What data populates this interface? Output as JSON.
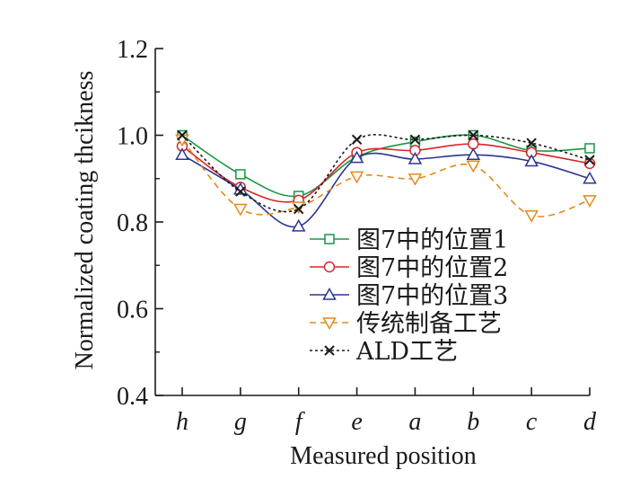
{
  "chart_data": {
    "type": "line",
    "title": "",
    "xlabel": "Measured position",
    "ylabel": "Normalized coating thcikness",
    "categories": [
      "h",
      "g",
      "f",
      "e",
      "a",
      "b",
      "c",
      "d"
    ],
    "ylim": [
      0.4,
      1.2
    ],
    "yticks": [
      "0.4",
      "0.6",
      "0.8",
      "1.0",
      "1.2"
    ],
    "grid": false,
    "legend_position": "center-right",
    "series": [
      {
        "name": "图7中的位置1",
        "color": "#1a9641",
        "marker": "square",
        "dash": "solid",
        "values": [
          1.0,
          0.91,
          0.86,
          0.95,
          0.985,
          1.0,
          0.965,
          0.97
        ]
      },
      {
        "name": "图7中的位置2",
        "color": "#d7262b",
        "marker": "circle",
        "dash": "solid",
        "values": [
          0.975,
          0.88,
          0.85,
          0.96,
          0.965,
          0.98,
          0.96,
          0.935
        ]
      },
      {
        "name": "图7中的位置3",
        "color": "#2b3590",
        "marker": "triangle-up",
        "dash": "solid",
        "values": [
          0.955,
          0.875,
          0.79,
          0.948,
          0.945,
          0.955,
          0.94,
          0.9
        ]
      },
      {
        "name": "传统制备工艺",
        "color": "#e08a1e",
        "marker": "triangle-down",
        "dash": "dashed",
        "values": [
          0.99,
          0.83,
          0.835,
          0.905,
          0.9,
          0.93,
          0.815,
          0.85
        ]
      },
      {
        "name": "ALD工艺",
        "color": "#1a1a1a",
        "marker": "x",
        "dash": "dotted",
        "values": [
          1.0,
          0.87,
          0.83,
          0.99,
          0.99,
          1.0,
          0.982,
          0.943
        ]
      }
    ]
  }
}
